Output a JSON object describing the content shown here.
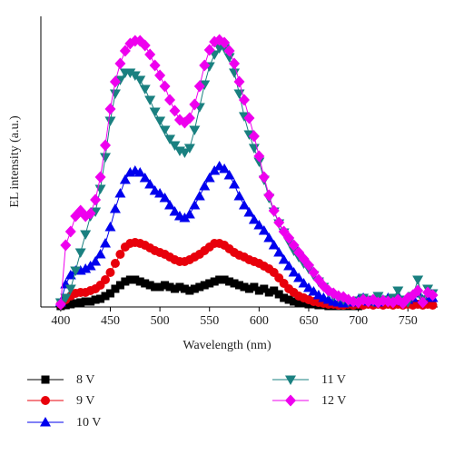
{
  "chart_data": {
    "type": "line",
    "x_label": "Wavelength (nm)",
    "y_label": "EL intensity (a.u.)",
    "xlim": [
      380,
      780
    ],
    "xticks": [
      400,
      450,
      500,
      550,
      600,
      650,
      700,
      750
    ],
    "ylim": [
      0,
      320
    ],
    "x": [
      400,
      405,
      410,
      415,
      420,
      425,
      430,
      435,
      440,
      445,
      450,
      455,
      460,
      465,
      470,
      475,
      480,
      485,
      490,
      495,
      500,
      505,
      510,
      515,
      520,
      525,
      530,
      535,
      540,
      545,
      550,
      555,
      560,
      565,
      570,
      575,
      580,
      585,
      590,
      595,
      600,
      605,
      610,
      615,
      620,
      625,
      630,
      635,
      640,
      645,
      650,
      655,
      660,
      665,
      670,
      675,
      680,
      685,
      690,
      695,
      700,
      705,
      710,
      715,
      720,
      725,
      730,
      735,
      740,
      745,
      750,
      755,
      760,
      765,
      770,
      775
    ],
    "series": [
      {
        "name": "8 V",
        "color": "#000000",
        "marker": "square",
        "values": [
          1,
          2,
          3,
          4,
          5,
          6,
          6,
          8,
          9,
          12,
          15,
          20,
          24,
          28,
          30,
          30,
          28,
          26,
          24,
          22,
          22,
          24,
          22,
          20,
          22,
          20,
          18,
          20,
          22,
          24,
          26,
          28,
          30,
          30,
          28,
          26,
          24,
          22,
          20,
          22,
          18,
          20,
          16,
          18,
          14,
          10,
          8,
          6,
          5,
          4,
          3,
          3,
          2,
          2,
          1,
          1,
          1,
          1,
          1,
          1,
          1,
          null,
          null,
          null,
          null,
          null,
          null,
          null,
          null,
          null,
          null,
          null,
          null,
          null,
          null,
          null
        ]
      },
      {
        "name": "9 V",
        "color": "#e8000b",
        "marker": "circle",
        "values": [
          3,
          8,
          12,
          15,
          16,
          16,
          18,
          20,
          24,
          30,
          38,
          48,
          58,
          66,
          70,
          71,
          70,
          68,
          65,
          62,
          60,
          58,
          55,
          52,
          50,
          50,
          52,
          55,
          58,
          62,
          66,
          70,
          70,
          68,
          64,
          60,
          57,
          55,
          52,
          50,
          48,
          45,
          42,
          38,
          32,
          26,
          20,
          16,
          12,
          10,
          8,
          6,
          5,
          4,
          3,
          3,
          2,
          2,
          3,
          2,
          3,
          2,
          3,
          2,
          3,
          2,
          3,
          2,
          3,
          2,
          3,
          2,
          3,
          2,
          3,
          2
        ]
      },
      {
        "name": "10 V",
        "color": "#0000ee",
        "marker": "triangle-up",
        "values": [
          5,
          25,
          35,
          40,
          40,
          42,
          45,
          50,
          58,
          70,
          88,
          108,
          125,
          140,
          148,
          150,
          148,
          142,
          135,
          128,
          125,
          120,
          112,
          105,
          100,
          98,
          102,
          112,
          122,
          133,
          142,
          150,
          155,
          152,
          145,
          135,
          122,
          112,
          104,
          96,
          90,
          84,
          76,
          68,
          60,
          52,
          45,
          38,
          32,
          26,
          21,
          17,
          13,
          10,
          8,
          6,
          5,
          4,
          6,
          5,
          8,
          10,
          6,
          8,
          5,
          8,
          10,
          7,
          12,
          6,
          8,
          10,
          15,
          8,
          12,
          10
        ]
      },
      {
        "name": "11 V",
        "color": "#1a8080",
        "marker": "triangle-down",
        "values": [
          5,
          10,
          20,
          40,
          60,
          80,
          100,
          105,
          130,
          165,
          205,
          235,
          250,
          258,
          258,
          255,
          250,
          240,
          228,
          215,
          205,
          195,
          185,
          178,
          172,
          170,
          175,
          195,
          220,
          245,
          265,
          278,
          285,
          285,
          275,
          258,
          235,
          210,
          190,
          175,
          160,
          140,
          120,
          105,
          92,
          82,
          72,
          62,
          55,
          48,
          42,
          35,
          28,
          22,
          16,
          12,
          10,
          8,
          6,
          5,
          7,
          10,
          8,
          6,
          12,
          8,
          6,
          10,
          18,
          8,
          5,
          12,
          30,
          8,
          20,
          15
        ]
      },
      {
        "name": "12 V",
        "color": "#ee00ee",
        "marker": "diamond",
        "values": [
          3,
          68,
          83,
          100,
          106,
          100,
          103,
          118,
          143,
          178,
          218,
          248,
          268,
          282,
          290,
          293,
          293,
          288,
          278,
          266,
          255,
          243,
          228,
          216,
          206,
          203,
          208,
          223,
          243,
          266,
          283,
          292,
          294,
          291,
          282,
          268,
          248,
          228,
          208,
          188,
          166,
          143,
          123,
          106,
          93,
          83,
          76,
          68,
          60,
          53,
          46,
          38,
          30,
          23,
          18,
          15,
          12,
          11,
          8,
          6,
          5,
          8,
          6,
          8,
          5,
          7,
          6,
          5,
          8,
          4,
          10,
          13,
          18,
          5,
          16,
          13
        ]
      }
    ]
  }
}
